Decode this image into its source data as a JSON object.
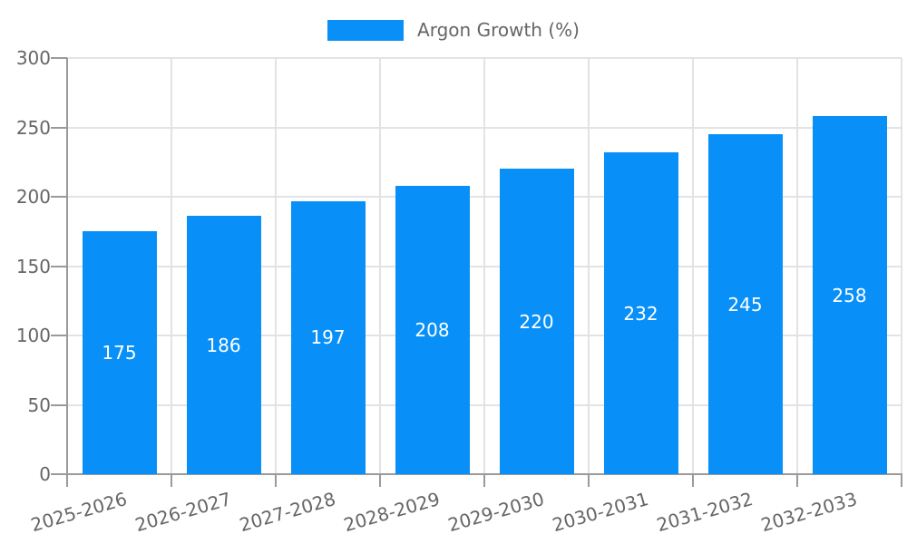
{
  "chart_data": {
    "type": "bar",
    "title": "",
    "legend": {
      "label": "Argon Growth (%)",
      "position": "top"
    },
    "categories": [
      "2025-2026",
      "2026-2027",
      "2027-2028",
      "2028-2029",
      "2029-2030",
      "2030-2031",
      "2031-2032",
      "2032-2033"
    ],
    "series": [
      {
        "name": "Argon Growth (%)",
        "values": [
          175,
          186,
          197,
          208,
          220,
          232,
          245,
          258
        ]
      }
    ],
    "value_labels_shown": true,
    "xlabel": "",
    "ylabel": "",
    "ylim": [
      0,
      300
    ],
    "yticks": [
      0,
      50,
      100,
      150,
      200,
      250,
      300
    ],
    "grid": true,
    "colors": {
      "bar": "#0890f8",
      "value_label": "#ffffff",
      "axis": "#9a9a9a",
      "grid": "#e3e3e6",
      "tick_label": "#666666"
    }
  }
}
